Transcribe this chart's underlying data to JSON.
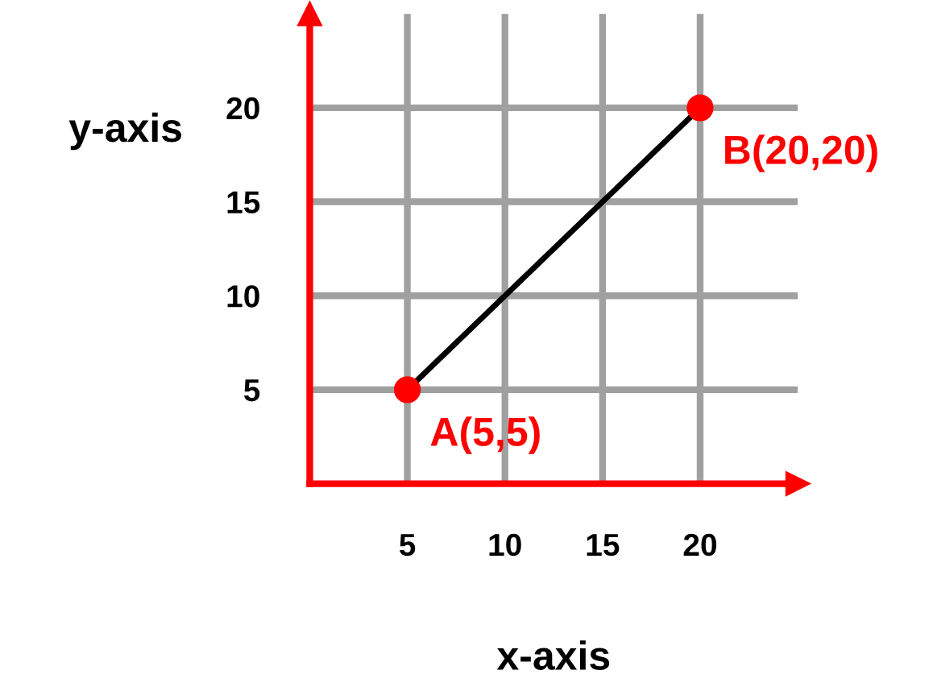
{
  "chart_data": {
    "type": "line",
    "xlabel": "x-axis",
    "ylabel": "y-axis",
    "x": [
      5,
      20
    ],
    "series": [
      {
        "color": "#000000",
        "colors": [
          "#ff0000",
          "#ff0000"
        ],
        "values": [
          5,
          20
        ]
      }
    ],
    "marker": "circle",
    "xlim": [
      0,
      25
    ],
    "ylim": [
      0,
      25
    ],
    "xticks": [
      5,
      10,
      15,
      20
    ],
    "yticks": [
      5,
      10,
      15,
      20
    ],
    "grid": true,
    "annotations": [
      {
        "text": "A(5,5)",
        "x": 5,
        "y": 5
      },
      {
        "text": "B(20,20)",
        "x": 20,
        "y": 20
      }
    ]
  }
}
